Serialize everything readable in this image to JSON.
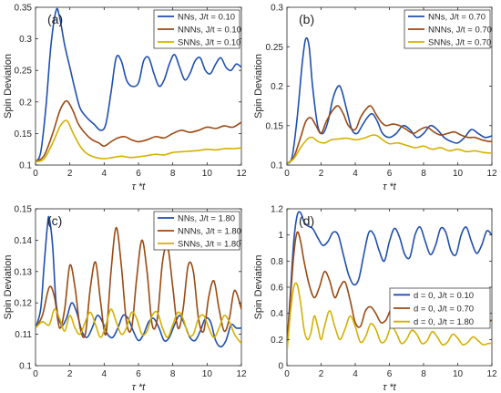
{
  "chart_data": [
    {
      "type": "line",
      "panel_label": "(a)",
      "xlabel": "τ *t",
      "ylabel": "Spin Deviation",
      "xlim": [
        0,
        12
      ],
      "ylim": [
        0.1,
        0.35
      ],
      "xticks": [
        0,
        2,
        4,
        6,
        8,
        10,
        12
      ],
      "yticks": [
        0.1,
        0.15,
        0.2,
        0.25,
        0.3,
        0.35
      ],
      "grid": false,
      "legend_position": "top-right",
      "series": [
        {
          "name": "NNs, J/t = 0.10",
          "color": "#1f4fb0",
          "x": [
            0,
            0.3,
            0.6,
            0.9,
            1.2,
            1.4,
            1.7,
            2.0,
            2.3,
            2.6,
            3.0,
            3.4,
            3.8,
            4.1,
            4.4,
            4.7,
            5.0,
            5.3,
            5.6,
            6.0,
            6.3,
            6.6,
            6.9,
            7.2,
            7.5,
            7.8,
            8.1,
            8.4,
            8.7,
            9.0,
            9.3,
            9.6,
            9.9,
            10.2,
            10.5,
            10.8,
            11.1,
            11.4,
            11.7,
            12.0
          ],
          "y": [
            0.105,
            0.12,
            0.19,
            0.29,
            0.345,
            0.335,
            0.29,
            0.255,
            0.22,
            0.19,
            0.175,
            0.165,
            0.155,
            0.165,
            0.215,
            0.27,
            0.265,
            0.235,
            0.225,
            0.23,
            0.265,
            0.27,
            0.245,
            0.225,
            0.235,
            0.26,
            0.275,
            0.255,
            0.235,
            0.245,
            0.265,
            0.27,
            0.25,
            0.245,
            0.26,
            0.27,
            0.255,
            0.25,
            0.26,
            0.255
          ]
        },
        {
          "name": "NNNs, J/t = 0.10",
          "color": "#9a4a13",
          "x": [
            0,
            0.5,
            1.0,
            1.4,
            1.7,
            1.9,
            2.2,
            2.5,
            2.9,
            3.3,
            3.7,
            4.0,
            4.4,
            4.8,
            5.2,
            5.6,
            6.0,
            6.5,
            7.0,
            7.5,
            8.0,
            8.5,
            9.0,
            9.5,
            10.0,
            10.5,
            11.0,
            11.5,
            12.0
          ],
          "y": [
            0.105,
            0.115,
            0.15,
            0.185,
            0.2,
            0.2,
            0.185,
            0.165,
            0.15,
            0.14,
            0.135,
            0.13,
            0.137,
            0.143,
            0.145,
            0.14,
            0.137,
            0.14,
            0.145,
            0.143,
            0.15,
            0.155,
            0.152,
            0.155,
            0.16,
            0.158,
            0.162,
            0.16,
            0.168
          ]
        },
        {
          "name": "SNNs, J/t = 0.10",
          "color": "#d4b000",
          "x": [
            0,
            0.5,
            1.0,
            1.4,
            1.7,
            1.9,
            2.2,
            2.6,
            3.0,
            3.5,
            4.0,
            4.5,
            5.0,
            5.5,
            6.0,
            6.5,
            7.0,
            7.5,
            8.0,
            8.5,
            9.0,
            9.5,
            10.0,
            10.5,
            11.0,
            11.5,
            12.0
          ],
          "y": [
            0.105,
            0.11,
            0.135,
            0.16,
            0.17,
            0.168,
            0.15,
            0.13,
            0.118,
            0.112,
            0.11,
            0.112,
            0.114,
            0.112,
            0.113,
            0.115,
            0.117,
            0.116,
            0.12,
            0.121,
            0.122,
            0.123,
            0.125,
            0.124,
            0.126,
            0.126,
            0.127
          ]
        }
      ]
    },
    {
      "type": "line",
      "panel_label": "(b)",
      "xlabel": "τ *t",
      "ylabel": "Spin Deviation",
      "xlim": [
        0,
        12
      ],
      "ylim": [
        0.1,
        0.3
      ],
      "xticks": [
        0,
        2,
        4,
        6,
        8,
        10,
        12
      ],
      "yticks": [
        0.1,
        0.15,
        0.2,
        0.25,
        0.3
      ],
      "grid": false,
      "legend_position": "top-right",
      "series": [
        {
          "name": "NNs, J/t = 0.70",
          "color": "#1f4fb0",
          "x": [
            0,
            0.3,
            0.6,
            0.9,
            1.1,
            1.3,
            1.5,
            1.8,
            2.1,
            2.4,
            2.7,
            3.0,
            3.2,
            3.5,
            3.8,
            4.1,
            4.4,
            4.7,
            5.0,
            5.3,
            5.6,
            6.0,
            6.4,
            6.8,
            7.2,
            7.6,
            8.0,
            8.4,
            8.8,
            9.2,
            9.6,
            10.0,
            10.4,
            10.8,
            11.2,
            11.6,
            12.0
          ],
          "y": [
            0.102,
            0.11,
            0.16,
            0.23,
            0.26,
            0.25,
            0.2,
            0.15,
            0.14,
            0.155,
            0.185,
            0.2,
            0.195,
            0.17,
            0.145,
            0.14,
            0.15,
            0.16,
            0.165,
            0.155,
            0.14,
            0.135,
            0.14,
            0.15,
            0.145,
            0.135,
            0.14,
            0.15,
            0.145,
            0.135,
            0.13,
            0.128,
            0.135,
            0.145,
            0.14,
            0.135,
            0.137
          ]
        },
        {
          "name": "NNNs, J/t = 0.70",
          "color": "#9a4a13",
          "x": [
            0,
            0.4,
            0.8,
            1.1,
            1.4,
            1.7,
            2.0,
            2.3,
            2.7,
            3.0,
            3.3,
            3.6,
            4.0,
            4.3,
            4.6,
            4.9,
            5.2,
            5.5,
            5.8,
            6.2,
            6.6,
            7.0,
            7.4,
            7.8,
            8.2,
            8.6,
            9.0,
            9.4,
            9.8,
            10.2,
            10.6,
            11.0,
            11.4,
            11.8,
            12.0
          ],
          "y": [
            0.102,
            0.11,
            0.135,
            0.155,
            0.16,
            0.15,
            0.14,
            0.155,
            0.17,
            0.175,
            0.165,
            0.15,
            0.145,
            0.16,
            0.17,
            0.175,
            0.165,
            0.155,
            0.15,
            0.152,
            0.15,
            0.145,
            0.14,
            0.145,
            0.148,
            0.142,
            0.138,
            0.14,
            0.142,
            0.138,
            0.135,
            0.135,
            0.132,
            0.13,
            0.13
          ]
        },
        {
          "name": "SNNs, J/t = 0.70",
          "color": "#d4b000",
          "x": [
            0,
            0.4,
            0.8,
            1.2,
            1.5,
            1.8,
            2.2,
            2.6,
            3.0,
            3.5,
            4.0,
            4.5,
            5.0,
            5.3,
            5.6,
            6.0,
            6.5,
            7.0,
            7.5,
            8.0,
            8.5,
            9.0,
            9.5,
            10.0,
            10.5,
            11.0,
            11.5,
            12.0
          ],
          "y": [
            0.102,
            0.108,
            0.122,
            0.133,
            0.135,
            0.13,
            0.128,
            0.132,
            0.133,
            0.134,
            0.132,
            0.134,
            0.138,
            0.137,
            0.132,
            0.127,
            0.128,
            0.125,
            0.122,
            0.124,
            0.12,
            0.122,
            0.118,
            0.12,
            0.117,
            0.118,
            0.116,
            0.115
          ]
        }
      ]
    },
    {
      "type": "line",
      "panel_label": "(c)",
      "xlabel": "τ *t",
      "ylabel": "Spin Deviation",
      "xlim": [
        0,
        12
      ],
      "ylim": [
        0.1,
        0.15
      ],
      "xticks": [
        0,
        2,
        4,
        6,
        8,
        10,
        12
      ],
      "yticks": [
        0.1,
        0.11,
        0.12,
        0.13,
        0.14,
        0.15
      ],
      "grid": false,
      "legend_position": "top-right",
      "series": [
        {
          "name": "NNs, J/t = 1.80",
          "color": "#1f4fb0",
          "x": [
            0,
            0.3,
            0.5,
            0.7,
            0.8,
            1.0,
            1.2,
            1.5,
            1.8,
            2.1,
            2.4,
            2.7,
            3.0,
            3.3,
            3.6,
            3.9,
            4.2,
            4.5,
            4.8,
            5.1,
            5.4,
            5.7,
            6.0,
            6.3,
            6.6,
            6.9,
            7.2,
            7.5,
            7.8,
            8.1,
            8.4,
            8.7,
            9.0,
            9.3,
            9.6,
            9.9,
            10.2,
            10.5,
            10.8,
            11.1,
            11.4,
            11.7,
            12.0
          ],
          "y": [
            0.112,
            0.118,
            0.132,
            0.145,
            0.147,
            0.138,
            0.12,
            0.113,
            0.115,
            0.12,
            0.117,
            0.111,
            0.109,
            0.112,
            0.116,
            0.114,
            0.11,
            0.109,
            0.112,
            0.116,
            0.115,
            0.111,
            0.108,
            0.11,
            0.114,
            0.115,
            0.112,
            0.108,
            0.109,
            0.113,
            0.116,
            0.113,
            0.109,
            0.108,
            0.111,
            0.115,
            0.114,
            0.108,
            0.106,
            0.108,
            0.113,
            0.112,
            0.112
          ]
        },
        {
          "name": "NNNs, J/t = 1.80",
          "color": "#9a4a13",
          "x": [
            0,
            0.4,
            0.8,
            1.1,
            1.4,
            1.7,
            2.0,
            2.3,
            2.6,
            2.9,
            3.2,
            3.5,
            3.8,
            4.1,
            4.4,
            4.7,
            5.0,
            5.3,
            5.6,
            5.9,
            6.2,
            6.5,
            6.8,
            7.1,
            7.4,
            7.7,
            8.0,
            8.3,
            8.6,
            8.9,
            9.2,
            9.5,
            9.8,
            10.1,
            10.4,
            10.7,
            11.0,
            11.3,
            11.6,
            12.0
          ],
          "y": [
            0.112,
            0.116,
            0.125,
            0.122,
            0.112,
            0.118,
            0.132,
            0.125,
            0.112,
            0.11,
            0.125,
            0.133,
            0.12,
            0.11,
            0.13,
            0.144,
            0.132,
            0.114,
            0.112,
            0.128,
            0.14,
            0.13,
            0.113,
            0.115,
            0.133,
            0.138,
            0.125,
            0.112,
            0.118,
            0.132,
            0.13,
            0.115,
            0.111,
            0.122,
            0.127,
            0.118,
            0.111,
            0.115,
            0.124,
            0.118
          ]
        },
        {
          "name": "SNNs, J/t = 1.80",
          "color": "#d4b000",
          "x": [
            0,
            0.4,
            0.8,
            1.1,
            1.4,
            1.7,
            2.0,
            2.3,
            2.6,
            2.9,
            3.2,
            3.5,
            3.8,
            4.1,
            4.4,
            4.7,
            5.0,
            5.3,
            5.6,
            5.9,
            6.2,
            6.5,
            6.8,
            7.1,
            7.4,
            7.7,
            8.0,
            8.3,
            8.6,
            8.9,
            9.2,
            9.5,
            9.8,
            10.1,
            10.4,
            10.7,
            11.0,
            11.3,
            11.6,
            12.0
          ],
          "y": [
            0.112,
            0.114,
            0.113,
            0.118,
            0.115,
            0.111,
            0.116,
            0.112,
            0.11,
            0.114,
            0.117,
            0.113,
            0.109,
            0.113,
            0.118,
            0.114,
            0.11,
            0.112,
            0.117,
            0.115,
            0.11,
            0.111,
            0.116,
            0.117,
            0.112,
            0.109,
            0.113,
            0.117,
            0.115,
            0.11,
            0.11,
            0.115,
            0.116,
            0.112,
            0.109,
            0.112,
            0.116,
            0.114,
            0.11,
            0.107
          ]
        }
      ]
    },
    {
      "type": "line",
      "panel_label": "(d)",
      "xlabel": "τ *t",
      "ylabel": "Spin Deviation",
      "xlim": [
        0,
        12
      ],
      "ylim": [
        0,
        1.2
      ],
      "xticks": [
        0,
        2,
        4,
        6,
        8,
        10,
        12
      ],
      "yticks": [
        0,
        0.2,
        0.4,
        0.6,
        0.8,
        1,
        1.2
      ],
      "grid": false,
      "legend_position": "center-right",
      "series": [
        {
          "name": "d = 0, J/t = 0.10",
          "color": "#1f4fb0",
          "x": [
            0,
            0.2,
            0.4,
            0.6,
            0.8,
            1.0,
            1.2,
            1.5,
            1.8,
            2.1,
            2.4,
            2.7,
            3.0,
            3.3,
            3.6,
            3.9,
            4.2,
            4.5,
            4.8,
            5.1,
            5.4,
            5.7,
            6.0,
            6.3,
            6.6,
            6.9,
            7.2,
            7.5,
            7.8,
            8.1,
            8.4,
            8.7,
            9.0,
            9.3,
            9.6,
            9.9,
            10.2,
            10.5,
            10.8,
            11.1,
            11.4,
            11.7,
            12.0
          ],
          "y": [
            0.15,
            0.55,
            0.95,
            1.15,
            1.17,
            1.1,
            1.07,
            1.05,
            0.98,
            0.92,
            0.95,
            1.02,
            1.0,
            0.85,
            0.7,
            0.62,
            0.66,
            0.85,
            1.02,
            1.0,
            0.88,
            0.8,
            0.95,
            1.05,
            0.98,
            0.85,
            0.83,
            1.0,
            1.06,
            0.95,
            0.85,
            0.92,
            1.05,
            1.02,
            0.88,
            0.85,
            1.0,
            1.06,
            0.95,
            0.86,
            0.92,
            1.03,
            1.0
          ]
        },
        {
          "name": "d = 0, J/t = 0.70",
          "color": "#9a4a13",
          "x": [
            0,
            0.2,
            0.4,
            0.6,
            0.8,
            1.0,
            1.3,
            1.6,
            1.9,
            2.2,
            2.5,
            2.8,
            3.1,
            3.4,
            3.7,
            4.0,
            4.3,
            4.6,
            4.9,
            5.2,
            5.5,
            5.8,
            6.1,
            6.4,
            6.7,
            7.0,
            7.3,
            7.6,
            7.9,
            8.2,
            8.5,
            8.8,
            9.1,
            9.4,
            9.7,
            10.0,
            10.3,
            10.6,
            10.9,
            11.2,
            11.5,
            11.8,
            12.0
          ],
          "y": [
            0.15,
            0.5,
            0.85,
            1.02,
            0.95,
            0.8,
            0.62,
            0.52,
            0.6,
            0.72,
            0.65,
            0.52,
            0.6,
            0.64,
            0.5,
            0.33,
            0.3,
            0.42,
            0.45,
            0.4,
            0.33,
            0.35,
            0.43,
            0.4,
            0.33,
            0.34,
            0.42,
            0.41,
            0.34,
            0.33,
            0.4,
            0.42,
            0.36,
            0.33,
            0.38,
            0.42,
            0.37,
            0.32,
            0.35,
            0.4,
            0.38,
            0.34,
            0.35
          ]
        },
        {
          "name": "d = 0, J/t = 1.80",
          "color": "#d4b000",
          "x": [
            0,
            0.2,
            0.4,
            0.6,
            0.8,
            1.0,
            1.2,
            1.4,
            1.6,
            1.8,
            2.0,
            2.2,
            2.5,
            2.8,
            3.1,
            3.4,
            3.7,
            4.0,
            4.3,
            4.6,
            4.9,
            5.2,
            5.5,
            5.8,
            6.1,
            6.4,
            6.7,
            7.0,
            7.3,
            7.6,
            7.9,
            8.2,
            8.5,
            8.8,
            9.1,
            9.4,
            9.7,
            10.0,
            10.3,
            10.6,
            10.9,
            11.2,
            11.5,
            11.8,
            12.0
          ],
          "y": [
            0.1,
            0.4,
            0.6,
            0.62,
            0.48,
            0.28,
            0.2,
            0.25,
            0.38,
            0.3,
            0.2,
            0.3,
            0.42,
            0.3,
            0.2,
            0.28,
            0.38,
            0.3,
            0.18,
            0.22,
            0.32,
            0.28,
            0.18,
            0.2,
            0.3,
            0.25,
            0.17,
            0.2,
            0.27,
            0.24,
            0.17,
            0.19,
            0.26,
            0.22,
            0.16,
            0.18,
            0.24,
            0.21,
            0.16,
            0.18,
            0.22,
            0.19,
            0.16,
            0.17,
            0.17
          ]
        }
      ]
    }
  ]
}
